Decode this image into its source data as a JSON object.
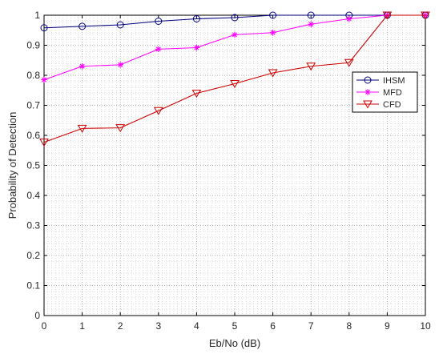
{
  "chart_data": {
    "type": "line",
    "xlabel": "Eb/No (dB)",
    "ylabel": "Probability of Detection",
    "xlim": [
      0,
      10
    ],
    "ylim": [
      0,
      1
    ],
    "xticks": [
      "0",
      "1",
      "2",
      "3",
      "4",
      "5",
      "6",
      "7",
      "8",
      "9",
      "10"
    ],
    "yticks": [
      "0",
      "0.1",
      "0.2",
      "0.3",
      "0.4",
      "0.5",
      "0.6",
      "0.7",
      "0.8",
      "0.9",
      "1"
    ],
    "grid": "on (major and minor, dotted)",
    "legend_position": "right",
    "x": [
      0,
      1,
      2,
      3,
      4,
      5,
      6,
      7,
      8,
      9,
      10
    ],
    "series": [
      {
        "name": "IHSM",
        "color": "#00007f",
        "marker": "circle",
        "values": [
          0.958,
          0.963,
          0.968,
          0.98,
          0.988,
          0.992,
          1.0,
          1.0,
          1.0,
          1.0,
          1.0
        ]
      },
      {
        "name": "MFD",
        "color": "#ff00ff",
        "marker": "asterisk",
        "values": [
          0.785,
          0.83,
          0.835,
          0.887,
          0.892,
          0.935,
          0.942,
          0.97,
          0.988,
          1.0,
          1.0
        ]
      },
      {
        "name": "CFD",
        "color": "#cc0000",
        "marker": "triangle-down",
        "values": [
          0.577,
          0.623,
          0.625,
          0.682,
          0.74,
          0.772,
          0.808,
          0.83,
          0.842,
          1.0,
          1.0
        ]
      }
    ]
  }
}
